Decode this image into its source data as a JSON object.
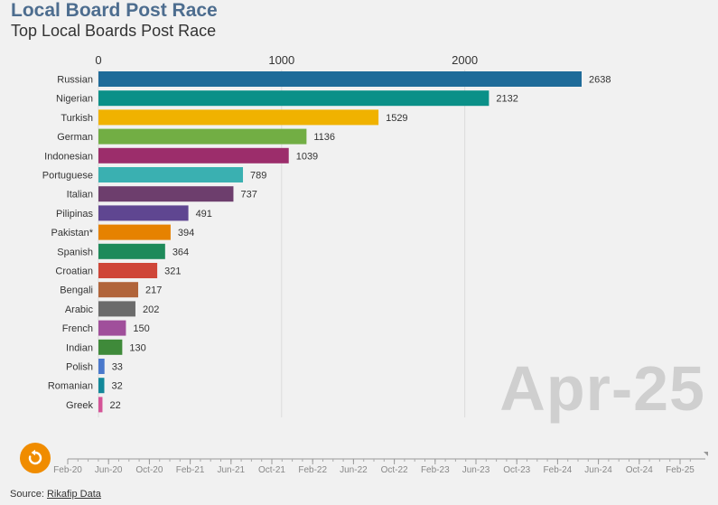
{
  "header": {
    "title": "Local Board Post Race",
    "subtitle": "Top Local Boards Post Race"
  },
  "current_date": "Apr-25",
  "timeline": {
    "ticks": [
      "Feb-20",
      "Jun-20",
      "Oct-20",
      "Feb-21",
      "Jun-21",
      "Oct-21",
      "Feb-22",
      "Jun-22",
      "Oct-22",
      "Feb-23",
      "Jun-23",
      "Oct-23",
      "Feb-24",
      "Jun-24",
      "Oct-24",
      "Feb-25"
    ],
    "position": 1.0
  },
  "footer": {
    "source_label": "Source:",
    "source_link": "Rikafip Data"
  },
  "controls": {
    "replay_icon": "replay-icon",
    "replay_color": "#f08c00"
  },
  "chart_data": {
    "type": "bar",
    "orientation": "horizontal",
    "title": "Local Board Post Race",
    "subtitle": "Top Local Boards Post Race",
    "xlim": [
      0,
      2638
    ],
    "x_ticks": [
      0,
      1000,
      2000
    ],
    "grid": true,
    "categories": [
      "Russian",
      "Nigerian",
      "Turkish",
      "German",
      "Indonesian",
      "Portuguese",
      "Italian",
      "Pilipinas",
      "Pakistan*",
      "Spanish",
      "Croatian",
      "Bengali",
      "Arabic",
      "French",
      "Indian",
      "Polish",
      "Romanian",
      "Greek"
    ],
    "values": [
      2638,
      2132,
      1529,
      1136,
      1039,
      789,
      737,
      491,
      394,
      364,
      321,
      217,
      202,
      150,
      130,
      33,
      32,
      22
    ],
    "colors": [
      "#1f6b99",
      "#0b9088",
      "#f0b200",
      "#72ae44",
      "#9c2d6b",
      "#3ab0b1",
      "#6d3e6d",
      "#5f4691",
      "#e68200",
      "#1e8a5a",
      "#cf4638",
      "#b1643a",
      "#6b6b6b",
      "#a04f9b",
      "#3f8a3a",
      "#4a79cc",
      "#12889a",
      "#d45497"
    ]
  }
}
